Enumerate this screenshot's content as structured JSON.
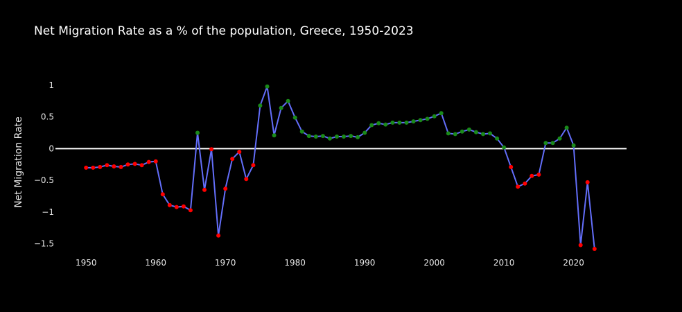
{
  "chart_data": {
    "type": "line",
    "title": "Net Migration Rate as a % of the population, Greece, 1950-2023",
    "xlabel": "",
    "ylabel": "Net Migration Rate",
    "xlim": [
      1945.6,
      2027.6
    ],
    "ylim": [
      -1.7,
      1.25
    ],
    "x_ticks": [
      1950,
      1960,
      1970,
      1980,
      1990,
      2000,
      2010,
      2020
    ],
    "y_ticks": [
      1,
      0.5,
      0,
      -0.5,
      -1,
      -1.5
    ],
    "y_tick_labels": [
      "1",
      "0.5",
      "0",
      "−0.5",
      "−1",
      "−1.5"
    ],
    "zero_line": true,
    "grid": false,
    "colors": {
      "line": "#636efa",
      "positive": "#1a8a1a",
      "negative": "#ff0000",
      "zero_line": "#ffffff"
    },
    "series": [
      {
        "x": [
          1950,
          1951,
          1952,
          1953,
          1954,
          1955,
          1956,
          1957,
          1958,
          1959,
          1960,
          1961,
          1962,
          1963,
          1964,
          1965,
          1966,
          1967,
          1968,
          1969,
          1970,
          1971,
          1972,
          1973,
          1974,
          1975,
          1976,
          1977,
          1978,
          1979,
          1980,
          1981,
          1982,
          1983,
          1984,
          1985,
          1986,
          1987,
          1988,
          1989,
          1990,
          1991,
          1992,
          1993,
          1994,
          1995,
          1996,
          1997,
          1998,
          1999,
          2000,
          2001,
          2002,
          2003,
          2004,
          2005,
          2006,
          2007,
          2008,
          2009,
          2010,
          2011,
          2012,
          2013,
          2014,
          2015,
          2016,
          2017,
          2018,
          2019,
          2020,
          2021,
          2022,
          2023
        ],
        "y": [
          -0.3,
          -0.3,
          -0.29,
          -0.26,
          -0.28,
          -0.29,
          -0.25,
          -0.24,
          -0.26,
          -0.21,
          -0.2,
          -0.72,
          -0.89,
          -0.92,
          -0.91,
          -0.97,
          0.25,
          -0.65,
          -0.01,
          -1.37,
          -0.63,
          -0.16,
          -0.05,
          -0.48,
          -0.26,
          0.68,
          0.98,
          0.21,
          0.64,
          0.75,
          0.49,
          0.27,
          0.2,
          0.19,
          0.2,
          0.16,
          0.19,
          0.19,
          0.2,
          0.18,
          0.25,
          0.37,
          0.4,
          0.38,
          0.41,
          0.41,
          0.41,
          0.43,
          0.45,
          0.47,
          0.51,
          0.56,
          0.24,
          0.23,
          0.27,
          0.3,
          0.26,
          0.23,
          0.24,
          0.16,
          0.02,
          -0.29,
          -0.6,
          -0.55,
          -0.43,
          -0.41,
          0.09,
          0.09,
          0.16,
          0.33,
          0.05,
          -1.52,
          -0.53,
          -1.58
        ]
      }
    ]
  }
}
